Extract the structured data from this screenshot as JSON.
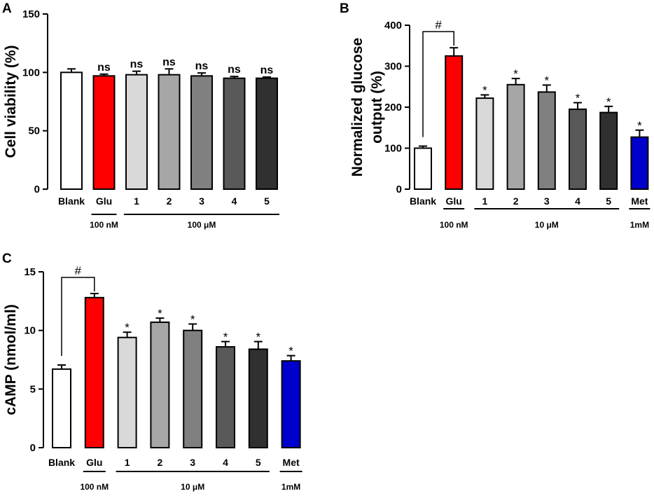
{
  "colors": {
    "Blank": "#ffffff",
    "Glu": "#ff0000",
    "1": "#d9d9d9",
    "2": "#a6a6a6",
    "3": "#808080",
    "4": "#595959",
    "5": "#303030",
    "Met": "#0000cc"
  },
  "chart_data": [
    {
      "panel": "A",
      "type": "bar",
      "ylabel": "Cell viability (%)",
      "ylim": [
        0,
        150
      ],
      "yticks": [
        0,
        50,
        100,
        150
      ],
      "categories": [
        "Blank",
        "Glu",
        "1",
        "2",
        "3",
        "4",
        "5"
      ],
      "values": [
        100,
        97,
        98,
        98,
        97,
        95,
        95
      ],
      "errors": [
        3,
        1.5,
        3,
        5,
        2.5,
        1.5,
        1
      ],
      "significance": [
        "",
        "ns",
        "ns",
        "ns",
        "ns",
        "ns",
        "ns"
      ],
      "groups": [
        {
          "label": "100 nM",
          "from": 1,
          "to": 1
        },
        {
          "label": "100 μM",
          "from": 2,
          "to": 6
        }
      ]
    },
    {
      "panel": "B",
      "type": "bar",
      "ylabel": "Normalized glucose output (%)",
      "ylabel_lines": [
        "Normalized glucose",
        "output (%)"
      ],
      "ylim": [
        0,
        400
      ],
      "yticks": [
        0,
        100,
        200,
        300,
        400
      ],
      "categories": [
        "Blank",
        "Glu",
        "1",
        "2",
        "3",
        "4",
        "5",
        "Met"
      ],
      "values": [
        100,
        325,
        222,
        255,
        237,
        195,
        187,
        127
      ],
      "errors": [
        5,
        20,
        8,
        15,
        17,
        16,
        15,
        17
      ],
      "significance": [
        "",
        "",
        "*",
        "*",
        "*",
        "*",
        "*",
        "*"
      ],
      "bracket": {
        "label": "#",
        "from": 0,
        "to": 1
      },
      "groups": [
        {
          "label": "100 nM",
          "from": 1,
          "to": 1
        },
        {
          "label": "10 μM",
          "from": 2,
          "to": 6
        },
        {
          "label": "1mM",
          "from": 7,
          "to": 7
        }
      ]
    },
    {
      "panel": "C",
      "type": "bar",
      "ylabel": "cAMP (nmol/ml)",
      "ylim": [
        0,
        15
      ],
      "yticks": [
        0,
        5,
        10,
        15
      ],
      "categories": [
        "Blank",
        "Glu",
        "1",
        "2",
        "3",
        "4",
        "5",
        "Met"
      ],
      "values": [
        6.7,
        12.8,
        9.4,
        10.7,
        10.0,
        8.6,
        8.4,
        7.4
      ],
      "errors": [
        0.35,
        0.35,
        0.45,
        0.35,
        0.55,
        0.45,
        0.65,
        0.45
      ],
      "significance": [
        "",
        "",
        "*",
        "*",
        "*",
        "*",
        "*",
        "*"
      ],
      "bracket": {
        "label": "#",
        "from": 0,
        "to": 1
      },
      "groups": [
        {
          "label": "100 nM",
          "from": 1,
          "to": 1
        },
        {
          "label": "10 μM",
          "from": 2,
          "to": 6
        },
        {
          "label": "1mM",
          "from": 7,
          "to": 7
        }
      ]
    }
  ]
}
